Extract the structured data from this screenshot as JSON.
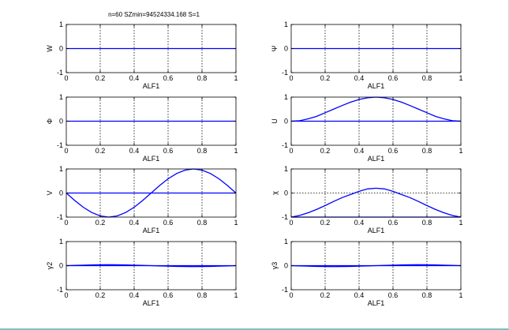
{
  "figure": {
    "title": "n=60 SZmin=94524334.168 S=1"
  },
  "colors": {
    "line": "#0000ff",
    "axes": "#000000",
    "grid": "#000000",
    "background": "#ffffff"
  },
  "chart_data": [
    {
      "type": "line",
      "title": "",
      "xlabel": "ALF1",
      "ylabel": "W",
      "xlim": [
        0,
        1
      ],
      "ylim": [
        -1,
        1
      ],
      "xticks": [
        "0",
        "0.2",
        "0.4",
        "0.6",
        "0.8",
        "1"
      ],
      "yticks": [
        "-1",
        "0",
        "1"
      ],
      "x_gridlines": true,
      "y_gridline_at_zero": false,
      "series": [
        {
          "x": [
            0,
            1
          ],
          "y": [
            0,
            0
          ]
        }
      ]
    },
    {
      "type": "line",
      "title": "",
      "xlabel": "ALF1",
      "ylabel": "Ψ",
      "xlim": [
        0,
        1
      ],
      "ylim": [
        -1,
        1
      ],
      "xticks": [
        "0",
        "0.2",
        "0.4",
        "0.6",
        "0.8",
        "1"
      ],
      "yticks": [
        "-1",
        "0",
        "1"
      ],
      "x_gridlines": true,
      "y_gridline_at_zero": false,
      "series": [
        {
          "x": [
            0,
            1
          ],
          "y": [
            0,
            0
          ]
        }
      ]
    },
    {
      "type": "line",
      "title": "",
      "xlabel": "ALF1",
      "ylabel": "Φ",
      "xlim": [
        0,
        1
      ],
      "ylim": [
        -1,
        1
      ],
      "xticks": [
        "0",
        "0.2",
        "0.4",
        "0.6",
        "0.8",
        "1"
      ],
      "yticks": [
        "-1",
        "0",
        "1"
      ],
      "x_gridlines": true,
      "y_gridline_at_zero": false,
      "series": [
        {
          "x": [
            0,
            1
          ],
          "y": [
            0,
            0
          ]
        }
      ]
    },
    {
      "type": "line",
      "title": "",
      "xlabel": "ALF1",
      "ylabel": "U",
      "xlim": [
        0,
        1
      ],
      "ylim": [
        -1,
        1
      ],
      "xticks": [
        "0",
        "0.2",
        "0.4",
        "0.6",
        "0.8",
        "1"
      ],
      "yticks": [
        "-1",
        "0",
        "1"
      ],
      "x_gridlines": true,
      "y_gridline_at_zero": false,
      "series": [
        {
          "x": [
            0,
            1
          ],
          "y": [
            0,
            0
          ]
        },
        {
          "x": [
            0,
            0.05,
            0.1,
            0.15,
            0.2,
            0.25,
            0.3,
            0.35,
            0.4,
            0.45,
            0.5,
            0.55,
            0.6,
            0.65,
            0.7,
            0.75,
            0.8,
            0.85,
            0.9,
            0.95,
            1
          ],
          "y": [
            0,
            0.02,
            0.1,
            0.2,
            0.35,
            0.5,
            0.65,
            0.79,
            0.9,
            0.97,
            1,
            0.97,
            0.9,
            0.79,
            0.65,
            0.5,
            0.35,
            0.2,
            0.1,
            0.02,
            0
          ]
        }
      ]
    },
    {
      "type": "line",
      "title": "",
      "xlabel": "ALF1",
      "ylabel": "V",
      "xlim": [
        0,
        1
      ],
      "ylim": [
        -1,
        1
      ],
      "xticks": [
        "0",
        "0.2",
        "0.4",
        "0.6",
        "0.8",
        "1"
      ],
      "yticks": [
        "-1",
        "0",
        "1"
      ],
      "x_gridlines": true,
      "y_gridline_at_zero": false,
      "series": [
        {
          "x": [
            0,
            1
          ],
          "y": [
            0,
            0
          ]
        },
        {
          "x": [
            0,
            0.05,
            0.1,
            0.15,
            0.2,
            0.25,
            0.3,
            0.35,
            0.4,
            0.45,
            0.5,
            0.55,
            0.6,
            0.65,
            0.7,
            0.75,
            0.8,
            0.85,
            0.9,
            0.95,
            1
          ],
          "y": [
            0,
            -0.31,
            -0.59,
            -0.81,
            -0.95,
            -1,
            -0.95,
            -0.81,
            -0.59,
            -0.31,
            0,
            0.31,
            0.59,
            0.81,
            0.95,
            1,
            0.95,
            0.81,
            0.59,
            0.31,
            0
          ]
        }
      ]
    },
    {
      "type": "line",
      "title": "",
      "xlabel": "ALF1",
      "ylabel": "χ",
      "xlim": [
        0,
        1
      ],
      "ylim": [
        -1,
        1
      ],
      "xticks": [
        "0",
        "0.2",
        "0.4",
        "0.6",
        "0.8",
        "1"
      ],
      "yticks": [
        "-1",
        "0",
        "1"
      ],
      "x_gridlines": true,
      "y_gridline_at_zero": true,
      "series": [
        {
          "x": [
            0,
            1
          ],
          "y": [
            -1,
            -1
          ]
        },
        {
          "x": [
            0,
            0.05,
            0.1,
            0.15,
            0.2,
            0.25,
            0.3,
            0.35,
            0.4,
            0.45,
            0.5,
            0.55,
            0.6,
            0.65,
            0.7,
            0.75,
            0.8,
            0.85,
            0.9,
            0.95,
            1
          ],
          "y": [
            -1,
            -0.93,
            -0.82,
            -0.68,
            -0.52,
            -0.35,
            -0.19,
            -0.06,
            0.07,
            0.17,
            0.2,
            0.17,
            0.07,
            -0.06,
            -0.19,
            -0.35,
            -0.52,
            -0.68,
            -0.82,
            -0.93,
            -1
          ]
        }
      ]
    },
    {
      "type": "line",
      "title": "",
      "xlabel": "ALF1",
      "ylabel": "γ2",
      "xlim": [
        0,
        1
      ],
      "ylim": [
        -1,
        1
      ],
      "xticks": [
        "0",
        "0.2",
        "0.4",
        "0.6",
        "0.8",
        "1"
      ],
      "yticks": [
        "-1",
        "0",
        "1"
      ],
      "x_gridlines": true,
      "y_gridline_at_zero": false,
      "series": [
        {
          "x": [
            0,
            1
          ],
          "y": [
            0,
            0
          ]
        },
        {
          "x": [
            0,
            0.05,
            0.1,
            0.15,
            0.2,
            0.25,
            0.3,
            0.35,
            0.4,
            0.45,
            0.5,
            0.55,
            0.6,
            0.65,
            0.7,
            0.75,
            0.8,
            0.85,
            0.9,
            0.95,
            1
          ],
          "y": [
            0,
            0.01,
            0.02,
            0.03,
            0.035,
            0.04,
            0.035,
            0.03,
            0.02,
            0.01,
            0,
            -0.01,
            -0.02,
            -0.03,
            -0.035,
            -0.04,
            -0.035,
            -0.03,
            -0.02,
            -0.01,
            0
          ]
        }
      ]
    },
    {
      "type": "line",
      "title": "",
      "xlabel": "ALF1",
      "ylabel": "γ3",
      "xlim": [
        0,
        1
      ],
      "ylim": [
        -1,
        1
      ],
      "xticks": [
        "0",
        "0.2",
        "0.4",
        "0.6",
        "0.8",
        "1"
      ],
      "yticks": [
        "-1",
        "0",
        "1"
      ],
      "x_gridlines": true,
      "y_gridline_at_zero": false,
      "series": [
        {
          "x": [
            0,
            1
          ],
          "y": [
            0,
            0
          ]
        },
        {
          "x": [
            0,
            0.05,
            0.1,
            0.15,
            0.2,
            0.25,
            0.3,
            0.35,
            0.4,
            0.45,
            0.5,
            0.55,
            0.6,
            0.65,
            0.7,
            0.75,
            0.8,
            0.85,
            0.9,
            0.95,
            1
          ],
          "y": [
            0,
            -0.01,
            -0.02,
            -0.03,
            -0.035,
            -0.04,
            -0.035,
            -0.03,
            -0.02,
            -0.01,
            0,
            0.01,
            0.02,
            0.03,
            0.035,
            0.04,
            0.035,
            0.03,
            0.02,
            0.01,
            0
          ]
        }
      ]
    }
  ]
}
